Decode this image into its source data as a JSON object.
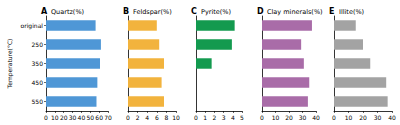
{
  "chart_data": [
    {
      "type": "bar",
      "orientation": "horizontal",
      "panel": "A",
      "title": "Quartz(%)",
      "ylabel": "Temperature(°C)",
      "categories": [
        "original",
        "250",
        "350",
        "450",
        "550"
      ],
      "values": [
        56,
        62,
        61,
        58,
        57
      ],
      "color": "#4f97d6",
      "xlim": [
        0,
        70
      ],
      "xticks": [
        0,
        10,
        20,
        30,
        40,
        50,
        60,
        70
      ],
      "grid": false
    },
    {
      "type": "bar",
      "orientation": "horizontal",
      "panel": "B",
      "title": "Feldspar(%)",
      "categories": [
        "original",
        "250",
        "350",
        "450",
        "550"
      ],
      "values": [
        6,
        6.5,
        7.5,
        7,
        7.5
      ],
      "color": "#f2b33d",
      "xlim": [
        0,
        10
      ],
      "xticks": [
        0,
        2,
        4,
        6,
        8,
        10
      ],
      "grid": false,
      "tick_labels": "x"
    },
    {
      "type": "bar",
      "orientation": "horizontal",
      "panel": "C",
      "title": "Pyrite(%)",
      "categories": [
        "original",
        "250",
        "350",
        "450",
        "550"
      ],
      "values": [
        4.2,
        3.9,
        1.7,
        0,
        0
      ],
      "color": "#139a4f",
      "xlim": [
        0,
        5
      ],
      "xticks": [
        0,
        1,
        2,
        3,
        4,
        5
      ],
      "grid": false,
      "tick_labels": "x"
    },
    {
      "type": "bar",
      "orientation": "horizontal",
      "panel": "D",
      "title": "Clay minerals(%)",
      "categories": [
        "original",
        "250",
        "350",
        "450",
        "550"
      ],
      "values": [
        37,
        29,
        31,
        35,
        34
      ],
      "color": "#a96ca8",
      "xlim": [
        0,
        40
      ],
      "xticks": [
        0,
        10,
        20,
        30,
        40
      ],
      "grid": false,
      "tick_labels": "x"
    },
    {
      "type": "bar",
      "orientation": "horizontal",
      "panel": "E",
      "title": "Illite(%)",
      "categories": [
        "original",
        "250",
        "350",
        "450",
        "550"
      ],
      "values": [
        15,
        20,
        25,
        36,
        37
      ],
      "color": "#a3a3a3",
      "xlim": [
        0,
        40
      ],
      "xticks": [
        0,
        10,
        20,
        30,
        40
      ],
      "grid": false,
      "tick_labels": "x"
    }
  ]
}
